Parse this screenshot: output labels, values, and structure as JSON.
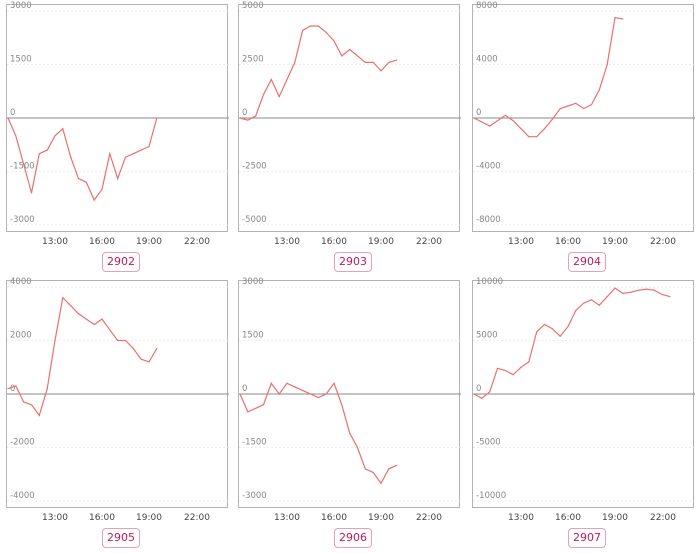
{
  "colors": {
    "line": "#e8706f",
    "grid": "#e6e6e6",
    "zero": "#888888"
  },
  "chart_data": [
    {
      "type": "line",
      "label": "2902",
      "x_ticks": [
        "13:00",
        "16:00",
        "19:00",
        "22:00"
      ],
      "y_ticks": [
        3000,
        1500,
        0,
        -1500,
        -3000
      ],
      "ylim": [
        -3000,
        3000
      ],
      "x": [
        10,
        10.5,
        11,
        11.5,
        12,
        12.5,
        13,
        13.5,
        14,
        14.5,
        15,
        15.5,
        16,
        16.5,
        17,
        17.5,
        18,
        18.5,
        19,
        19.5
      ],
      "y": [
        0,
        -500,
        -1300,
        -2100,
        -1000,
        -900,
        -500,
        -300,
        -1100,
        -1700,
        -1800,
        -2300,
        -2000,
        -1000,
        -1700,
        -1100,
        -1000,
        -900,
        -800,
        0
      ]
    },
    {
      "type": "line",
      "label": "2903",
      "x_ticks": [
        "13:00",
        "16:00",
        "19:00",
        "22:00"
      ],
      "y_ticks": [
        5000,
        2500,
        0,
        -2500,
        -5000
      ],
      "ylim": [
        -5000,
        5000
      ],
      "x": [
        10,
        10.5,
        11,
        11.5,
        12,
        12.5,
        13,
        13.5,
        14,
        14.5,
        15,
        15.5,
        16,
        16.5,
        17,
        17.5,
        18,
        18.5,
        19,
        19.5,
        20
      ],
      "y": [
        0,
        -100,
        100,
        1100,
        1800,
        1000,
        1800,
        2600,
        4100,
        4300,
        4300,
        4000,
        3600,
        2900,
        3200,
        2900,
        2600,
        2600,
        2200,
        2600,
        2700
      ]
    },
    {
      "type": "line",
      "label": "2904",
      "x_ticks": [
        "13:00",
        "16:00",
        "19:00",
        "22:00"
      ],
      "y_ticks": [
        8000,
        4000,
        0,
        -4000,
        -8000
      ],
      "ylim": [
        -8000,
        8000
      ],
      "x": [
        10,
        10.5,
        11,
        11.5,
        12,
        12.5,
        13,
        13.5,
        14,
        14.5,
        15,
        15.5,
        16,
        16.5,
        17,
        17.5,
        18,
        18.5,
        19,
        19.5
      ],
      "y": [
        0,
        -300,
        -600,
        -200,
        200,
        -200,
        -800,
        -1400,
        -1400,
        -800,
        -100,
        700,
        900,
        1100,
        700,
        1000,
        2100,
        4000,
        7500,
        7400
      ]
    },
    {
      "type": "line",
      "label": "2905",
      "x_ticks": [
        "13:00",
        "16:00",
        "19:00",
        "22:00"
      ],
      "y_ticks": [
        4000,
        2000,
        0,
        -2000,
        -4000
      ],
      "ylim": [
        -4000,
        4000
      ],
      "x": [
        10,
        10.5,
        11,
        11.5,
        12,
        12.5,
        13,
        13.5,
        14,
        14.5,
        15,
        15.5,
        16,
        16.5,
        17,
        17.5,
        18,
        18.5,
        19,
        19.5
      ],
      "y": [
        200,
        300,
        -300,
        -400,
        -800,
        200,
        2000,
        3600,
        3300,
        3000,
        2800,
        2600,
        2800,
        2400,
        2000,
        2000,
        1700,
        1300,
        1200,
        1700
      ]
    },
    {
      "type": "line",
      "label": "2906",
      "x_ticks": [
        "13:00",
        "16:00",
        "19:00",
        "22:00"
      ],
      "y_ticks": [
        3000,
        1500,
        0,
        -1500,
        -3000
      ],
      "ylim": [
        -3000,
        3000
      ],
      "x": [
        10,
        10.5,
        11,
        11.5,
        12,
        12.5,
        13,
        13.5,
        14,
        14.5,
        15,
        15.5,
        16,
        16.5,
        17,
        17.5,
        18,
        18.5,
        19,
        19.5,
        20
      ],
      "y": [
        0,
        -500,
        -400,
        -300,
        300,
        0,
        300,
        200,
        100,
        0,
        -100,
        0,
        300,
        -300,
        -1100,
        -1500,
        -2100,
        -2200,
        -2500,
        -2100,
        -2000
      ]
    },
    {
      "type": "line",
      "label": "2907",
      "x_ticks": [
        "13:00",
        "16:00",
        "19:00",
        "22:00"
      ],
      "y_ticks": [
        10000,
        5000,
        0,
        -5000,
        -10000
      ],
      "ylim": [
        -10000,
        10000
      ],
      "x": [
        10,
        10.5,
        11,
        11.5,
        12,
        12.5,
        13,
        13.5,
        14,
        14.5,
        15,
        15.5,
        16,
        16.5,
        17,
        17.5,
        18,
        18.5,
        19,
        19.5,
        20,
        20.5,
        21,
        21.5,
        22,
        22.5
      ],
      "y": [
        0,
        -400,
        200,
        2400,
        2200,
        1800,
        2500,
        3000,
        5800,
        6500,
        6100,
        5400,
        6300,
        7800,
        8500,
        8800,
        8300,
        9100,
        9900,
        9400,
        9500,
        9700,
        9800,
        9700,
        9300,
        9100
      ]
    }
  ]
}
